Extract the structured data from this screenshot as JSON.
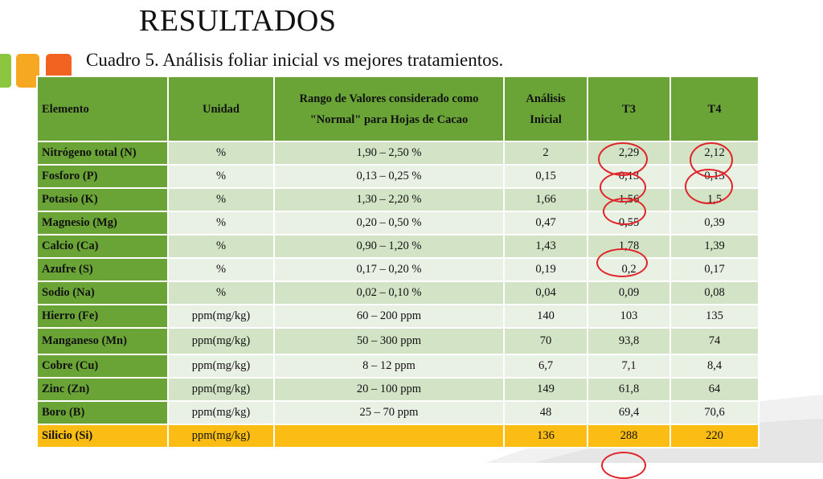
{
  "title": "RESULTADOS",
  "subtitle": "Cuadro 5. Análisis foliar inicial vs mejores tratamientos.",
  "colors": {
    "header_green": "#6aa436",
    "row_light": "#e9f0e4",
    "row_mid": "#d2e3c6",
    "highlight": "#fbbd13",
    "circle_red": "#e0242a"
  },
  "table": {
    "headers": [
      "Elemento",
      "Unidad",
      "Rango de Valores considerado como \"Normal\" para Hojas de Cacao",
      "Análisis Inicial",
      "T3",
      "T4"
    ],
    "rows": [
      [
        "Nitrógeno total (N)",
        "%",
        "1,90 – 2,50 %",
        "2",
        "2,29",
        "2,12"
      ],
      [
        "Fosforo (P)",
        "%",
        "0,13 – 0,25 %",
        "0,15",
        "0,13",
        "0,13"
      ],
      [
        "Potasio (K)",
        "%",
        "1,30 – 2,20 %",
        "1,66",
        "1,56",
        "1,5"
      ],
      [
        "Magnesio (Mg)",
        "%",
        "0,20 – 0,50 %",
        "0,47",
        "0,55",
        "0,39"
      ],
      [
        "Calcio (Ca)",
        "%",
        "0,90 – 1,20 %",
        "1,43",
        "1,78",
        "1,39"
      ],
      [
        "Azufre (S)",
        "%",
        "0,17 – 0,20 %",
        "0,19",
        "0,2",
        "0,17"
      ],
      [
        "Sodio (Na)",
        "%",
        "0,02 – 0,10 %",
        "0,04",
        "0,09",
        "0,08"
      ],
      [
        "Hierro (Fe)",
        "ppm(mg/kg)",
        "60 – 200 ppm",
        "140",
        "103",
        "135"
      ],
      [
        "Manganeso (Mn)",
        "ppm(mg/kg)",
        "50 – 300 ppm",
        "70",
        "93,8",
        "74"
      ],
      [
        "Cobre (Cu)",
        "ppm(mg/kg)",
        "8 – 12 ppm",
        "6,7",
        "7,1",
        "8,4"
      ],
      [
        "Zinc (Zn)",
        "ppm(mg/kg)",
        "20 – 100 ppm",
        "149",
        "61,8",
        "64"
      ],
      [
        "Boro (B)",
        "ppm(mg/kg)",
        "25 – 70 ppm",
        "48",
        "69,4",
        "70,6"
      ],
      [
        "Silicio (Si)",
        "ppm(mg/kg)",
        "",
        "136",
        "288",
        "220"
      ]
    ]
  }
}
